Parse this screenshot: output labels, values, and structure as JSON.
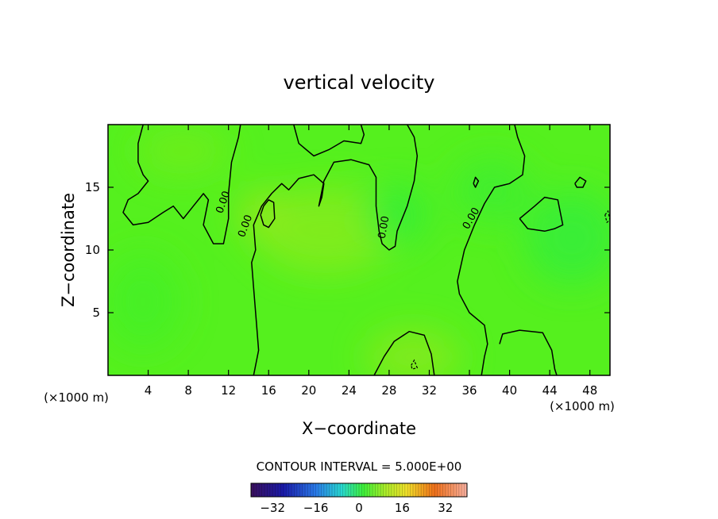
{
  "chart_data": {
    "type": "heatmap",
    "title": "vertical velocity",
    "xlabel": "X−coordinate",
    "ylabel": "Z−coordinate",
    "x_unit_left": "(×1000 m)",
    "x_unit_right": "(×1000 m)",
    "xlim": [
      0,
      50
    ],
    "ylim": [
      0,
      20
    ],
    "xticks": [
      4,
      8,
      12,
      16,
      20,
      24,
      28,
      32,
      36,
      40,
      44,
      48
    ],
    "xtick_labels": [
      "4",
      "8",
      "12",
      "16",
      "20",
      "24",
      "28",
      "32",
      "36",
      "40",
      "44",
      "48"
    ],
    "yticks": [
      5,
      10,
      15
    ],
    "ytick_labels": [
      "5",
      "10",
      "15"
    ],
    "contour_interval_text": "CONTOUR INTERVAL = 5.000E+00",
    "contour_label": "0.00",
    "colorbar": {
      "range": [
        -40,
        40
      ],
      "ticks": [
        -32,
        -16,
        0,
        16,
        32
      ],
      "tick_labels": [
        "−32",
        "−16",
        "0",
        "16",
        "32"
      ]
    },
    "colors": {
      "field_base": "#55f01e",
      "contour": "#000000"
    },
    "zero_contours": [
      [
        [
          3.5,
          20
        ],
        [
          3,
          18.5
        ],
        [
          3,
          17
        ],
        [
          3.5,
          16
        ],
        [
          4,
          15.5
        ],
        [
          3,
          14.5
        ],
        [
          2,
          14
        ],
        [
          1.5,
          13
        ],
        [
          2.5,
          12
        ],
        [
          4,
          12.2
        ],
        [
          5.5,
          13
        ],
        [
          6.5,
          13.5
        ],
        [
          7.5,
          12.5
        ],
        [
          8.5,
          13.5
        ],
        [
          9.5,
          14.5
        ],
        [
          10,
          14
        ],
        [
          9.5,
          12
        ],
        [
          10.5,
          10.5
        ],
        [
          11.5,
          10.5
        ],
        [
          12,
          12.5
        ],
        [
          12,
          14.5
        ],
        [
          12.3,
          17
        ],
        [
          13,
          19
        ],
        [
          13.2,
          20
        ]
      ],
      [
        [
          14.5,
          0
        ],
        [
          15,
          2
        ],
        [
          14.8,
          4
        ],
        [
          14.5,
          7
        ],
        [
          14.3,
          9
        ],
        [
          14.7,
          10
        ],
        [
          14.5,
          12
        ],
        [
          15.3,
          13.5
        ],
        [
          16.3,
          14.5
        ],
        [
          17.3,
          15.3
        ],
        [
          18,
          14.8
        ],
        [
          19,
          15.7
        ],
        [
          20.5,
          16
        ],
        [
          21.5,
          15.3
        ],
        [
          21.3,
          14.2
        ],
        [
          21,
          13.5
        ],
        [
          21.5,
          15.5
        ],
        [
          22.5,
          17
        ],
        [
          24.2,
          17.2
        ],
        [
          26,
          16.8
        ],
        [
          26.7,
          15.8
        ],
        [
          26.7,
          13.5
        ],
        [
          27,
          11.5
        ],
        [
          27.3,
          10.5
        ],
        [
          28,
          10
        ],
        [
          28.6,
          10.3
        ],
        [
          28.8,
          11.5
        ],
        [
          29.8,
          13.5
        ],
        [
          30.5,
          15.5
        ],
        [
          30.8,
          17.5
        ],
        [
          30.5,
          19
        ],
        [
          29.8,
          20
        ]
      ],
      [
        [
          18.5,
          20
        ],
        [
          19,
          18.5
        ],
        [
          20.5,
          17.5
        ],
        [
          22,
          18
        ],
        [
          23.5,
          18.7
        ],
        [
          25.2,
          18.5
        ],
        [
          25.5,
          19.2
        ],
        [
          25.2,
          20
        ]
      ],
      [
        [
          26.5,
          0
        ],
        [
          27.5,
          1.5
        ],
        [
          28.5,
          2.7
        ],
        [
          30,
          3.5
        ],
        [
          31.5,
          3.2
        ],
        [
          32.2,
          1.7
        ],
        [
          32.5,
          0
        ]
      ],
      [
        [
          40.5,
          20
        ],
        [
          40.8,
          19
        ],
        [
          41.5,
          17.5
        ],
        [
          41.3,
          16
        ],
        [
          40,
          15.3
        ],
        [
          38.5,
          15
        ],
        [
          37.5,
          13.7
        ],
        [
          36.5,
          12
        ],
        [
          35.5,
          10
        ],
        [
          34.8,
          7.5
        ],
        [
          35,
          6.5
        ],
        [
          36,
          5
        ],
        [
          37.5,
          4
        ],
        [
          37.8,
          2.5
        ],
        [
          37.5,
          1.5
        ],
        [
          37.2,
          0
        ]
      ],
      [
        [
          39,
          2.5
        ],
        [
          39.3,
          3.3
        ],
        [
          41,
          3.6
        ],
        [
          43.3,
          3.4
        ],
        [
          44.2,
          2
        ],
        [
          44.5,
          0.5
        ],
        [
          44.7,
          0
        ]
      ],
      [
        [
          41,
          12.5
        ],
        [
          42.5,
          13.5
        ],
        [
          43.5,
          14.2
        ],
        [
          44.8,
          14
        ],
        [
          45.3,
          12
        ],
        [
          44.5,
          11.7
        ],
        [
          43.5,
          11.5
        ],
        [
          41.8,
          11.7
        ],
        [
          41,
          12.5
        ]
      ],
      [
        [
          15.2,
          12.8
        ],
        [
          15.5,
          13.5
        ],
        [
          16,
          14
        ],
        [
          16.5,
          13.8
        ],
        [
          16.6,
          12.5
        ],
        [
          16,
          11.8
        ],
        [
          15.5,
          12
        ],
        [
          15.2,
          12.8
        ]
      ],
      [
        [
          36.4,
          15.3
        ],
        [
          36.6,
          15.8
        ],
        [
          36.9,
          15.5
        ],
        [
          36.6,
          15
        ],
        [
          36.4,
          15.3
        ]
      ],
      [
        [
          46.5,
          15.3
        ],
        [
          47,
          15.8
        ],
        [
          47.6,
          15.5
        ],
        [
          47.3,
          15
        ],
        [
          46.7,
          15
        ],
        [
          46.5,
          15.3
        ]
      ]
    ],
    "dashed_contours": [
      [
        [
          49.5,
          12.8
        ],
        [
          49.8,
          13.1
        ],
        [
          50,
          12.4
        ],
        [
          49.7,
          12.2
        ],
        [
          49.5,
          12.8
        ]
      ],
      [
        [
          30.2,
          0.8
        ],
        [
          30.5,
          1.2
        ],
        [
          30.8,
          0.6
        ],
        [
          30.3,
          0.5
        ],
        [
          30.2,
          0.8
        ]
      ]
    ],
    "labels": [
      {
        "text": "0.00",
        "x": 11.5,
        "y": 13.8,
        "angle": -70
      },
      {
        "text": "0.00",
        "x": 13.7,
        "y": 11.9,
        "angle": -70
      },
      {
        "text": "0.00",
        "x": 27.5,
        "y": 11.8,
        "angle": -80
      },
      {
        "text": "0.00",
        "x": 36.2,
        "y": 12.5,
        "angle": -60
      }
    ]
  }
}
